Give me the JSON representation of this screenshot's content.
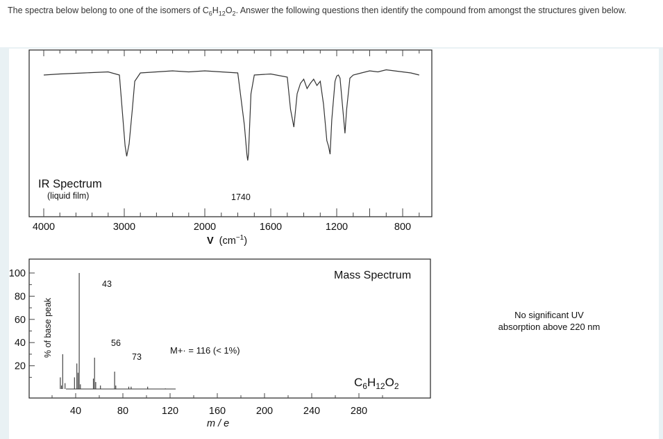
{
  "question": {
    "text_before": "The spectra below belong to one of the isomers of C",
    "f1": "6",
    "h": "H",
    "f2": "12",
    "o": "O",
    "f3": "2",
    "text_after": ". Answer the following questions then identify the compound from amongst the structures given below."
  },
  "ir": {
    "title": "IR Spectrum",
    "subtitle": "(liquid film)",
    "peak_label": "1740",
    "x_ticks": [
      "4000",
      "3000",
      "2000",
      "1600",
      "1200",
      "800"
    ],
    "x_axis_nu": "V",
    "x_axis_unit": "(cm",
    "x_axis_exp": "−1",
    "x_axis_close": ")"
  },
  "ms": {
    "title": "Mass Spectrum",
    "y_axis_label": "% of base peak",
    "y_ticks": [
      "100",
      "80",
      "60",
      "40",
      "20"
    ],
    "x_ticks": [
      "40",
      "80",
      "120",
      "160",
      "200",
      "240",
      "280"
    ],
    "x_axis_label": "m / e",
    "peak_labels": [
      "43",
      "56",
      "73"
    ],
    "molecular_ion_label": "M+· = 116 (< 1%)",
    "formula": {
      "c": "C",
      "n1": "6",
      "h": "H",
      "n2": "12",
      "o": "O",
      "n3": "2"
    }
  },
  "uv_note": {
    "line1": "No significant UV",
    "line2": "absorption above 220 nm"
  },
  "chart_data": [
    {
      "type": "line",
      "title": "IR Spectrum",
      "subtitle": "(liquid film)",
      "xlabel": "ν (cm⁻¹)",
      "ylabel": "",
      "x_ticks": [
        4000,
        3000,
        2000,
        1600,
        1200,
        800
      ],
      "annotations": [
        {
          "text": "1740",
          "x": 1740
        }
      ],
      "series": [
        {
          "x": [
            4000,
            3800,
            3500,
            3200,
            3060,
            2990,
            2970,
            2940,
            2900,
            2870,
            2800,
            2600,
            2400,
            2200,
            2000,
            1900,
            1800,
            1760,
            1745,
            1740,
            1735,
            1720,
            1700,
            1600,
            1500,
            1480,
            1460,
            1440,
            1420,
            1400,
            1380,
            1360,
            1340,
            1320,
            1300,
            1280,
            1260,
            1250,
            1240,
            1230,
            1210,
            1200,
            1190,
            1180,
            1160,
            1150,
            1140,
            1120,
            1100,
            1050,
            1000,
            950,
            900,
            850,
            800,
            750,
            700
          ],
          "transmittance_pct": [
            88,
            89,
            90,
            91,
            88,
            20,
            10,
            22,
            55,
            82,
            90,
            91,
            92,
            91,
            92,
            91,
            90,
            40,
            12,
            6,
            12,
            70,
            88,
            89,
            86,
            55,
            38,
            70,
            80,
            84,
            75,
            80,
            84,
            78,
            82,
            60,
            25,
            20,
            12,
            45,
            82,
            87,
            88,
            85,
            50,
            32,
            55,
            85,
            88,
            90,
            92,
            91,
            93,
            92,
            91,
            90,
            88
          ]
        }
      ]
    },
    {
      "type": "bar",
      "title": "Mass Spectrum",
      "xlabel": "m / e",
      "ylabel": "% of base peak",
      "xlim": [
        20,
        300
      ],
      "ylim": [
        0,
        100
      ],
      "x_ticks": [
        40,
        80,
        120,
        160,
        200,
        240,
        280
      ],
      "y_ticks": [
        20,
        40,
        60,
        80,
        100
      ],
      "annotations": [
        {
          "text": "43",
          "x": 43
        },
        {
          "text": "56",
          "x": 56
        },
        {
          "text": "73",
          "x": 73
        },
        {
          "text": "M+· = 116 (< 1%)",
          "x": 116
        }
      ],
      "series": [
        {
          "name": "",
          "mz": [
            27,
            28,
            29,
            31,
            39,
            41,
            42,
            43,
            44,
            55,
            56,
            57,
            61,
            73,
            74,
            85,
            87,
            101,
            116
          ],
          "intensity": [
            10,
            3,
            30,
            5,
            10,
            22,
            14,
            100,
            4,
            9,
            27,
            6,
            3,
            15,
            3,
            2,
            2,
            2,
            0.5
          ]
        }
      ]
    }
  ]
}
